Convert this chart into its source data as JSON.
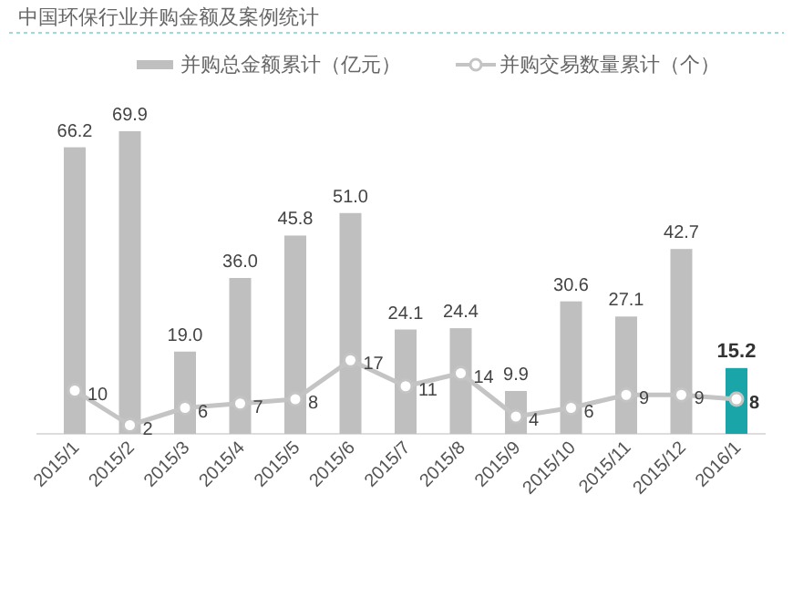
{
  "chart_data": {
    "type": "bar",
    "title": "中国环保行业并购金额及案例统计",
    "categories": [
      "2015/1",
      "2015/2",
      "2015/3",
      "2015/4",
      "2015/5",
      "2015/6",
      "2015/7",
      "2015/8",
      "2015/9",
      "2015/10",
      "2015/11",
      "2015/12",
      "2016/1"
    ],
    "series": [
      {
        "name": "并购总金额累计（亿元）",
        "color": "#bfbfbf",
        "colors": [
          "#bfbfbf",
          "#bfbfbf",
          "#bfbfbf",
          "#bfbfbf",
          "#bfbfbf",
          "#bfbfbf",
          "#bfbfbf",
          "#bfbfbf",
          "#bfbfbf",
          "#bfbfbf",
          "#bfbfbf",
          "#bfbfbf",
          "#1aa6a8"
        ],
        "values": [
          66.2,
          69.9,
          19.0,
          36.0,
          45.8,
          51.0,
          24.1,
          24.4,
          9.9,
          30.6,
          27.1,
          42.7,
          15.2
        ],
        "value_labels": [
          "66.2",
          "69.9",
          "19.0",
          "36.0",
          "45.8",
          "51.0",
          "24.1",
          "24.4",
          "9.9",
          "30.6",
          "27.1",
          "42.7",
          "15.2"
        ]
      },
      {
        "name": "并购交易数量累计（个）",
        "type": "line",
        "color": "#c4c4c4",
        "marker": "circle",
        "values": [
          10,
          2,
          6,
          7,
          8,
          17,
          11,
          14,
          4,
          6,
          9,
          9,
          8
        ]
      }
    ],
    "data_labels": true,
    "legend": "top",
    "grid": false
  }
}
